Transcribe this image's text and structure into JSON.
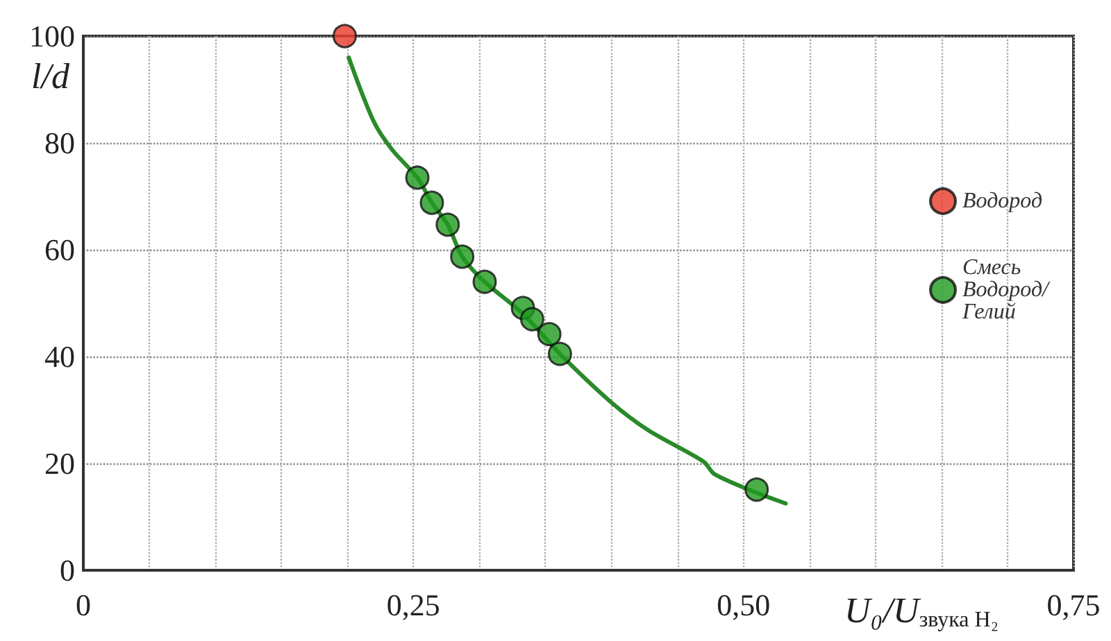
{
  "chart_data": {
    "type": "scatter",
    "xlabel": "U₀/U$_{звука H₂}$",
    "ylabel": "l/d",
    "xlim": [
      0,
      0.75
    ],
    "ylim": [
      0,
      100
    ],
    "xticks": [
      0,
      {
        "value": 0.05,
        "label": null
      },
      {
        "value": 0.1,
        "label": null
      },
      {
        "value": 0.15,
        "label": null
      },
      {
        "value": 0.2,
        "label": null
      },
      {
        "value": 0.25,
        "label": "0,25"
      },
      {
        "value": 0.3,
        "label": null
      },
      {
        "value": 0.35,
        "label": null
      },
      {
        "value": 0.4,
        "label": null
      },
      {
        "value": 0.45,
        "label": null
      },
      {
        "value": 0.5,
        "label": "0,50"
      },
      {
        "value": 0.55,
        "label": null
      },
      {
        "value": 0.6,
        "label": null
      },
      {
        "value": 0.65,
        "label": null
      },
      {
        "value": 0.7,
        "label": null
      },
      {
        "value": 0.75,
        "label": "0,75"
      }
    ],
    "yticks": [
      0,
      20,
      40,
      60,
      80,
      100
    ],
    "grid": true,
    "legend": "right",
    "marker": "circle",
    "series": [
      {
        "type": "line",
        "color": "#2a8a2a",
        "marker": "none",
        "x": [
          0.201,
          0.22,
          0.234,
          0.253,
          0.264,
          0.276,
          0.287,
          0.304,
          0.333,
          0.361,
          0.4,
          0.428,
          0.47,
          0.478,
          0.51,
          0.532
        ],
        "values": [
          96,
          84,
          78.7,
          73.5,
          68.8,
          64.7,
          58.7,
          54,
          48,
          40.5,
          31.4,
          26.2,
          20.3,
          18,
          14.5,
          12.5
        ]
      },
      {
        "name": "Водород",
        "color": "#e8392a",
        "x": [
          0.198
        ],
        "values": [
          100
        ]
      },
      {
        "name": "Смесь Водород/Гелий",
        "color": "#1e9a1e",
        "x": [
          0.253,
          0.264,
          0.276,
          0.287,
          0.304,
          0.333,
          0.34,
          0.353,
          0.361,
          0.51
        ],
        "values": [
          73.5,
          68.8,
          64.7,
          58.7,
          54,
          49.1,
          47,
          44.2,
          40.5,
          15.1
        ]
      }
    ]
  }
}
